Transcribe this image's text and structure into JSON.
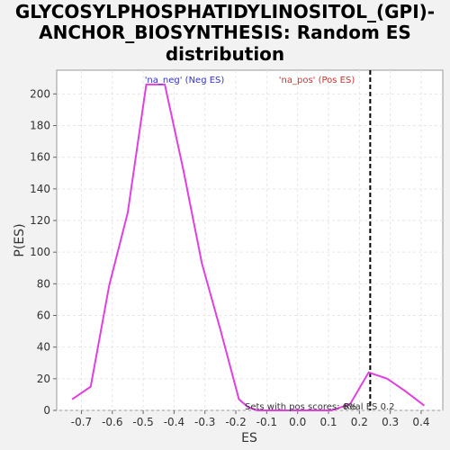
{
  "chart_data": {
    "type": "line",
    "title_lines": [
      "GLYCOSYLPHOSPHATIDYLINOSITOL_(GPI)-",
      "ANCHOR_BIOSYNTHESIS: Random ES",
      "distribution"
    ],
    "xlabel": "ES",
    "ylabel": "P(ES)",
    "xlim": [
      -0.78,
      0.47
    ],
    "ylim": [
      0,
      215
    ],
    "x_ticks": [
      -0.7,
      -0.6,
      -0.5,
      -0.4,
      -0.3,
      -0.2,
      -0.1,
      0.0,
      0.1,
      0.2,
      0.3,
      0.4
    ],
    "x_tick_labels": [
      "-0.7",
      "-0.6",
      "-0.5",
      "-0.4",
      "-0.3",
      "-0.2",
      "-0.1",
      "0.0",
      "0.1",
      "0.2",
      "0.3",
      "0.4"
    ],
    "y_ticks": [
      0,
      20,
      40,
      60,
      80,
      100,
      120,
      140,
      160,
      180,
      200
    ],
    "y_tick_labels": [
      "0",
      "20",
      "40",
      "60",
      "80",
      "100",
      "120",
      "140",
      "160",
      "180",
      "200"
    ],
    "grid": true,
    "series": [
      {
        "color": "#e040e0",
        "points": [
          {
            "x": -0.73,
            "y": 7
          },
          {
            "x": -0.67,
            "y": 15
          },
          {
            "x": -0.61,
            "y": 79
          },
          {
            "x": -0.55,
            "y": 125
          },
          {
            "x": -0.49,
            "y": 206
          },
          {
            "x": -0.43,
            "y": 206
          },
          {
            "x": -0.37,
            "y": 152
          },
          {
            "x": -0.31,
            "y": 93
          },
          {
            "x": -0.25,
            "y": 51
          },
          {
            "x": -0.19,
            "y": 7
          },
          {
            "x": -0.16,
            "y": 2
          },
          {
            "x": -0.13,
            "y": 0
          },
          {
            "x": 0.0,
            "y": 0
          },
          {
            "x": 0.11,
            "y": 0
          },
          {
            "x": 0.17,
            "y": 4
          },
          {
            "x": 0.23,
            "y": 24
          },
          {
            "x": 0.29,
            "y": 20
          },
          {
            "x": 0.35,
            "y": 12
          },
          {
            "x": 0.41,
            "y": 3
          }
        ]
      }
    ],
    "real_es": 0.235,
    "legend": [
      {
        "text": "'na_neg' (Neg ES)",
        "color": "#3333cc"
      },
      {
        "text": "'na_pos' (Pos ES)",
        "color": "#cc3333"
      }
    ],
    "annotations": [
      {
        "text": "Sets with pos scores: 6%"
      },
      {
        "text": "Real ES 0.2"
      }
    ],
    "colors": {
      "line": "#e040e0",
      "real_es_line": "#000000",
      "grid": "#e6e6e6",
      "plot_bg": "#ffffff",
      "page_bg": "#f2f2f2"
    }
  }
}
